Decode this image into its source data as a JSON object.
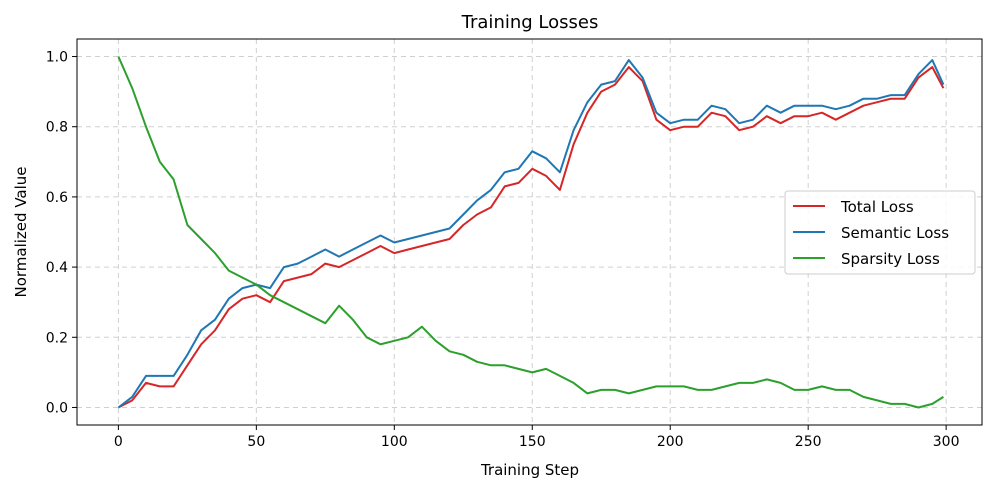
{
  "chart_data": {
    "type": "line",
    "title": "Training Losses",
    "xlabel": "Training Step",
    "ylabel": "Normalized Value",
    "xlim": [
      -15,
      313
    ],
    "ylim": [
      -0.05,
      1.05
    ],
    "xticks": [
      0,
      50,
      100,
      150,
      200,
      250,
      300
    ],
    "yticks": [
      0.0,
      0.2,
      0.4,
      0.6,
      0.8,
      1.0
    ],
    "xtick_labels": [
      "0",
      "50",
      "100",
      "150",
      "200",
      "250",
      "300"
    ],
    "ytick_labels": [
      "0.0",
      "0.2",
      "0.4",
      "0.6",
      "0.8",
      "1.0"
    ],
    "grid": true,
    "legend_position": "center-right",
    "x": [
      0,
      5,
      10,
      15,
      20,
      25,
      30,
      35,
      40,
      45,
      50,
      55,
      60,
      65,
      70,
      75,
      80,
      85,
      90,
      95,
      100,
      105,
      110,
      115,
      120,
      125,
      130,
      135,
      140,
      145,
      150,
      155,
      160,
      165,
      170,
      175,
      180,
      185,
      190,
      195,
      200,
      205,
      210,
      215,
      220,
      225,
      230,
      235,
      240,
      245,
      250,
      255,
      260,
      265,
      270,
      275,
      280,
      285,
      290,
      295,
      299
    ],
    "series": [
      {
        "name": "Total Loss",
        "color": "#d62728",
        "values": [
          0.0,
          0.02,
          0.07,
          0.06,
          0.06,
          0.12,
          0.18,
          0.22,
          0.28,
          0.31,
          0.32,
          0.3,
          0.36,
          0.37,
          0.38,
          0.41,
          0.4,
          0.42,
          0.44,
          0.46,
          0.44,
          0.45,
          0.46,
          0.47,
          0.48,
          0.52,
          0.55,
          0.57,
          0.63,
          0.64,
          0.68,
          0.66,
          0.62,
          0.75,
          0.84,
          0.9,
          0.92,
          0.97,
          0.93,
          0.82,
          0.79,
          0.8,
          0.8,
          0.84,
          0.83,
          0.79,
          0.8,
          0.83,
          0.81,
          0.83,
          0.83,
          0.84,
          0.82,
          0.84,
          0.86,
          0.87,
          0.88,
          0.88,
          0.94,
          0.97,
          0.91
        ]
      },
      {
        "name": "Semantic Loss",
        "color": "#1f77b4",
        "values": [
          0.0,
          0.03,
          0.09,
          0.09,
          0.09,
          0.15,
          0.22,
          0.25,
          0.31,
          0.34,
          0.35,
          0.34,
          0.4,
          0.41,
          0.43,
          0.45,
          0.43,
          0.45,
          0.47,
          0.49,
          0.47,
          0.48,
          0.49,
          0.5,
          0.51,
          0.55,
          0.59,
          0.62,
          0.67,
          0.68,
          0.73,
          0.71,
          0.67,
          0.79,
          0.87,
          0.92,
          0.93,
          0.99,
          0.94,
          0.84,
          0.81,
          0.82,
          0.82,
          0.86,
          0.85,
          0.81,
          0.82,
          0.86,
          0.84,
          0.86,
          0.86,
          0.86,
          0.85,
          0.86,
          0.88,
          0.88,
          0.89,
          0.89,
          0.95,
          0.99,
          0.92
        ]
      },
      {
        "name": "Sparsity Loss",
        "color": "#2ca02c",
        "values": [
          1.0,
          0.91,
          0.8,
          0.7,
          0.65,
          0.52,
          0.48,
          0.44,
          0.39,
          0.37,
          0.35,
          0.32,
          0.3,
          0.28,
          0.26,
          0.24,
          0.29,
          0.25,
          0.2,
          0.18,
          0.19,
          0.2,
          0.23,
          0.19,
          0.16,
          0.15,
          0.13,
          0.12,
          0.12,
          0.11,
          0.1,
          0.11,
          0.09,
          0.07,
          0.04,
          0.05,
          0.05,
          0.04,
          0.05,
          0.06,
          0.06,
          0.06,
          0.05,
          0.05,
          0.06,
          0.07,
          0.07,
          0.08,
          0.07,
          0.05,
          0.05,
          0.06,
          0.05,
          0.05,
          0.03,
          0.02,
          0.01,
          0.01,
          0.0,
          0.01,
          0.03
        ]
      }
    ]
  }
}
